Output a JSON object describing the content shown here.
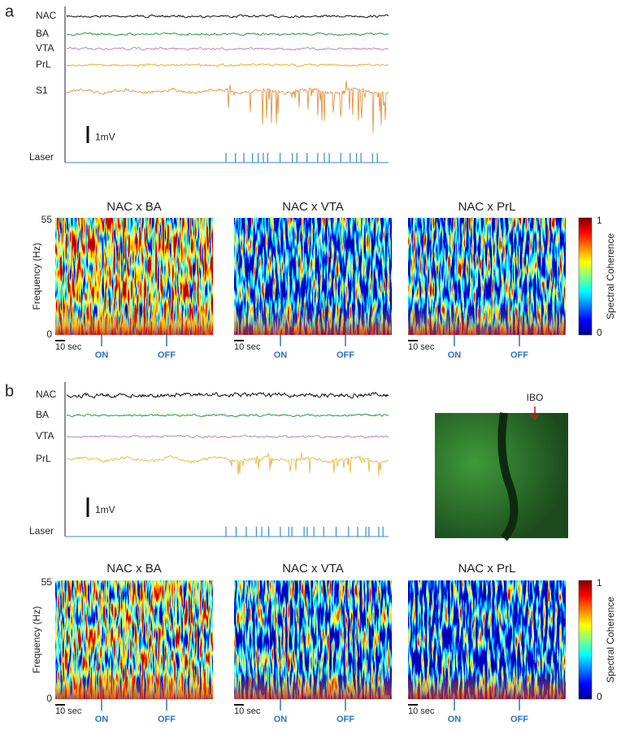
{
  "panels": [
    {
      "label": "a",
      "traces": [
        "NAC",
        "BA",
        "VTA",
        "PrL",
        "S1"
      ],
      "laser": "Laser",
      "scale_bar": "1mV",
      "coherence_plots": [
        "NAC x BA",
        "NAC x VTA",
        "NAC x  PrL"
      ],
      "freq_axis": {
        "label": "Frequency (Hz)",
        "max": 55,
        "min": 0
      },
      "time_scale": "10 sec",
      "laser_on": "ON",
      "laser_off": "OFF",
      "colorbar": {
        "label": "Spectral Coherence",
        "max": 1,
        "min": 0
      }
    },
    {
      "label": "b",
      "traces": [
        "NAC",
        "BA",
        "VTA",
        "PrL"
      ],
      "laser": "Laser",
      "scale_bar": "1mV",
      "histology_label": "IBO",
      "coherence_plots": [
        "NAC x BA",
        "NAC x VTA",
        "NAC x  PrL"
      ],
      "freq_axis": {
        "label": "Frequency (Hz)",
        "max": 55,
        "min": 0
      },
      "time_scale": "10 sec",
      "laser_on": "ON",
      "laser_off": "OFF",
      "colorbar": {
        "label": "Spectral Coherence",
        "max": 1,
        "min": 0
      }
    }
  ]
}
